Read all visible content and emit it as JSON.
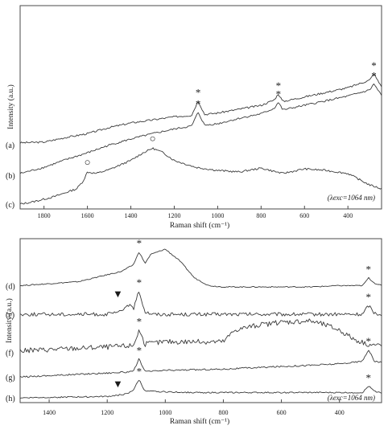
{
  "colors": {
    "trace": "#3a3a3a",
    "frame": "#4a4a4a",
    "text": "#1a1a1a"
  },
  "chart_data": [
    {
      "type": "line",
      "panel": "top",
      "xlabel": "Raman shift (cm⁻¹)",
      "ylabel": "Intensity (a.u.)",
      "x_reversed": true,
      "xlim": [
        1910,
        245
      ],
      "xticks": [
        1800,
        1600,
        1400,
        1200,
        1000,
        800,
        600,
        400
      ],
      "xtick_labels": [
        "1800",
        "1600",
        "1400",
        "1200",
        "1000",
        "800",
        "600",
        "400"
      ],
      "annotation_note": "(λexc=1064 nm)",
      "series": [
        {
          "name": "(a)",
          "x": [
            1910,
            1800,
            1700,
            1600,
            1500,
            1400,
            1300,
            1200,
            1120,
            1090,
            1060,
            1000,
            900,
            800,
            740,
            720,
            700,
            600,
            500,
            400,
            300,
            280,
            260,
            245
          ],
          "y": [
            0.4,
            0.41,
            0.47,
            0.52,
            0.6,
            0.66,
            0.7,
            0.74,
            0.76,
            0.95,
            0.77,
            0.79,
            0.84,
            0.89,
            0.96,
            1.04,
            0.94,
            1.0,
            1.06,
            1.12,
            1.22,
            1.3,
            1.2,
            1.14
          ]
        },
        {
          "name": "(b)",
          "x": [
            1910,
            1800,
            1700,
            1600,
            1500,
            1400,
            1300,
            1200,
            1120,
            1090,
            1060,
            1000,
            900,
            800,
            740,
            720,
            700,
            600,
            500,
            400,
            300,
            280,
            260,
            245
          ],
          "y": [
            0.0,
            0.08,
            0.18,
            0.27,
            0.37,
            0.45,
            0.52,
            0.58,
            0.62,
            0.8,
            0.63,
            0.65,
            0.72,
            0.78,
            0.85,
            0.93,
            0.83,
            0.89,
            0.95,
            1.01,
            1.09,
            1.17,
            1.08,
            1.02
          ]
        },
        {
          "name": "(c)",
          "x": [
            1910,
            1850,
            1750,
            1650,
            1620,
            1600,
            1560,
            1500,
            1400,
            1350,
            1300,
            1250,
            1200,
            1100,
            1000,
            900,
            800,
            700,
            600,
            500,
            400,
            300,
            245
          ],
          "y": [
            -0.4,
            -0.37,
            -0.3,
            -0.2,
            -0.1,
            0.02,
            0.0,
            0.05,
            0.17,
            0.26,
            0.33,
            0.27,
            0.17,
            0.08,
            0.04,
            0.02,
            0.07,
            0.0,
            0.06,
            0.04,
            0.0,
            -0.15,
            -0.2
          ]
        }
      ],
      "annotations": [
        {
          "symbol": "*",
          "series": "(a)",
          "x": 1090
        },
        {
          "symbol": "*",
          "series": "(a)",
          "x": 720
        },
        {
          "symbol": "*",
          "series": "(a)",
          "x": 280
        },
        {
          "symbol": "*",
          "series": "(b)",
          "x": 1090
        },
        {
          "symbol": "*",
          "series": "(b)",
          "x": 720
        },
        {
          "symbol": "*",
          "series": "(b)",
          "x": 280
        },
        {
          "symbol": "○",
          "series": "(c)",
          "x": 1600
        },
        {
          "symbol": "○",
          "series": "(c)",
          "x": 1300
        }
      ]
    },
    {
      "type": "line",
      "panel": "bottom",
      "xlabel": "Raman shift (cm⁻¹)",
      "ylabel": "Intensity (a.u.)",
      "x_reversed": true,
      "xlim": [
        1500,
        255
      ],
      "xticks": [
        1400,
        1200,
        1000,
        800,
        600,
        400
      ],
      "xtick_labels": [
        "1400",
        "1200",
        "1000",
        "800",
        "600",
        "400"
      ],
      "annotation_note": "(λexc=1064 nm)",
      "series": [
        {
          "name": "(d)",
          "x": [
            1500,
            1300,
            1150,
            1110,
            1090,
            1070,
            1050,
            1000,
            950,
            900,
            850,
            800,
            700,
            600,
            500,
            400,
            320,
            300,
            280,
            255
          ],
          "y": [
            0.74,
            0.77,
            0.85,
            0.9,
            1.0,
            0.91,
            0.98,
            1.02,
            0.93,
            0.8,
            0.74,
            0.73,
            0.73,
            0.73,
            0.73,
            0.74,
            0.74,
            0.8,
            0.76,
            0.74
          ],
          "noise": 0.004
        },
        {
          "name": "(e)",
          "x": [
            1500,
            1200,
            1150,
            1130,
            1110,
            1090,
            1070,
            1040,
            900,
            700,
            500,
            400,
            320,
            300,
            280,
            255
          ],
          "y": [
            0.52,
            0.52,
            0.54,
            0.6,
            0.56,
            0.7,
            0.54,
            0.52,
            0.52,
            0.52,
            0.52,
            0.52,
            0.52,
            0.59,
            0.53,
            0.52
          ],
          "noise": 0.014
        },
        {
          "name": "(f)",
          "x": [
            1500,
            1300,
            1200,
            1110,
            1090,
            1070,
            1000,
            900,
            800,
            760,
            700,
            600,
            500,
            450,
            400,
            350,
            300,
            255
          ],
          "y": [
            0.24,
            0.26,
            0.27,
            0.28,
            0.4,
            0.29,
            0.31,
            0.31,
            0.31,
            0.4,
            0.43,
            0.46,
            0.47,
            0.44,
            0.4,
            0.33,
            0.29,
            0.28
          ],
          "noise": 0.02
        },
        {
          "name": "(g)",
          "x": [
            1500,
            1300,
            1200,
            1110,
            1090,
            1070,
            1000,
            800,
            600,
            400,
            320,
            300,
            280,
            255
          ],
          "y": [
            0.04,
            0.06,
            0.07,
            0.08,
            0.18,
            0.08,
            0.09,
            0.1,
            0.12,
            0.14,
            0.16,
            0.25,
            0.16,
            0.15
          ],
          "noise": 0.006
        },
        {
          "name": "(h)",
          "x": [
            1500,
            1200,
            1130,
            1110,
            1090,
            1070,
            900,
            700,
            500,
            400,
            320,
            300,
            280,
            255
          ],
          "y": [
            -0.12,
            -0.11,
            -0.09,
            -0.06,
            0.02,
            -0.07,
            -0.08,
            -0.08,
            -0.08,
            -0.08,
            -0.08,
            -0.03,
            -0.07,
            -0.08
          ],
          "noise": 0.005
        }
      ],
      "annotations": [
        {
          "symbol": "*",
          "series": "(d)",
          "x": 1090
        },
        {
          "symbol": "*",
          "series": "(d)",
          "x": 300
        },
        {
          "symbol": "▼",
          "series": "(e)",
          "x": 1130
        },
        {
          "symbol": "*",
          "series": "(e)",
          "x": 1090
        },
        {
          "symbol": "*",
          "series": "(e)",
          "x": 300
        },
        {
          "symbol": "*",
          "series": "(f)",
          "x": 1090
        },
        {
          "symbol": "*",
          "series": "(g)",
          "x": 1090
        },
        {
          "symbol": "*",
          "series": "(g)",
          "x": 300
        },
        {
          "symbol": "▼",
          "series": "(h)",
          "x": 1130
        },
        {
          "symbol": "*",
          "series": "(h)",
          "x": 1090
        },
        {
          "symbol": "*",
          "series": "(h)",
          "x": 300
        }
      ]
    }
  ]
}
